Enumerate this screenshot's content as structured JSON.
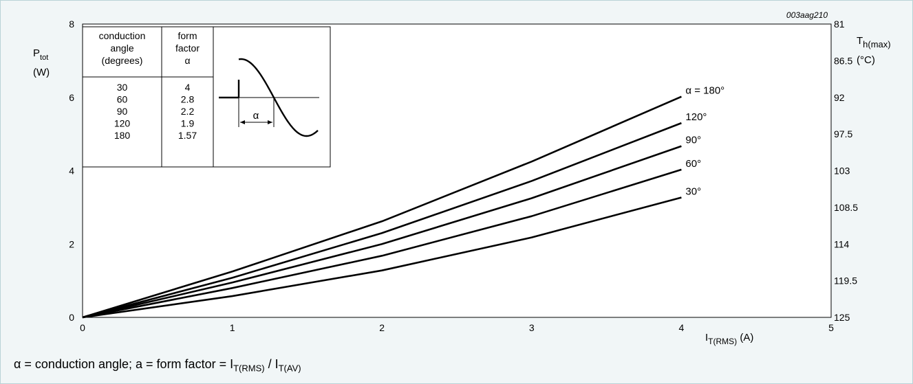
{
  "figure_code": "003aag210",
  "chart_data": {
    "type": "line",
    "x": [
      0,
      4
    ],
    "series": [
      {
        "name": "α = 180°",
        "x": [
          0,
          1,
          2,
          3,
          4
        ],
        "values": [
          0,
          1.25,
          2.62,
          4.25,
          6.02
        ]
      },
      {
        "name": "120°",
        "x": [
          0,
          1,
          2,
          3,
          4
        ],
        "values": [
          0,
          1.08,
          2.3,
          3.72,
          5.3
        ]
      },
      {
        "name": "90°",
        "x": [
          0,
          1,
          2,
          3,
          4
        ],
        "values": [
          0,
          0.95,
          2.0,
          3.25,
          4.67
        ]
      },
      {
        "name": "60°",
        "x": [
          0,
          1,
          2,
          3,
          4
        ],
        "values": [
          0,
          0.8,
          1.68,
          2.76,
          4.03
        ]
      },
      {
        "name": "30°",
        "x": [
          0,
          1,
          2,
          3,
          4
        ],
        "values": [
          0,
          0.58,
          1.28,
          2.18,
          3.27
        ]
      }
    ],
    "xlim": [
      0,
      5
    ],
    "ylim": [
      0,
      8
    ],
    "x_ticks": [
      "0",
      "1",
      "2",
      "3",
      "4",
      "5"
    ],
    "y_ticks": [
      "0",
      "2",
      "4",
      "6",
      "8"
    ],
    "y2_ticks": [
      "81",
      "86.5",
      "92",
      "97.5",
      "103",
      "108.5",
      "114",
      "119.5",
      "125"
    ],
    "ylabel": {
      "main": "P",
      "sub": "tot",
      "unit": "(W)"
    },
    "y2label": {
      "main": "T",
      "sub": "h(max)",
      "unit": "(°C)"
    },
    "xlabel": {
      "main": "I",
      "sub": "T(RMS)",
      "unit": "(A)"
    },
    "grid": true,
    "inset_table": {
      "headers": [
        [
          "conduction",
          "angle",
          "(degrees)"
        ],
        [
          "form",
          "factor",
          "α"
        ]
      ],
      "angles": [
        "30",
        "60",
        "90",
        "120",
        "180"
      ],
      "factors": [
        "4",
        "2.8",
        "2.2",
        "1.9",
        "1.57"
      ],
      "waveform_label": "α"
    }
  },
  "caption": {
    "part1": "α = conduction angle; a = form factor = I",
    "sub1": "T(RMS)",
    "part2": " / I",
    "sub2": "T(AV)"
  }
}
